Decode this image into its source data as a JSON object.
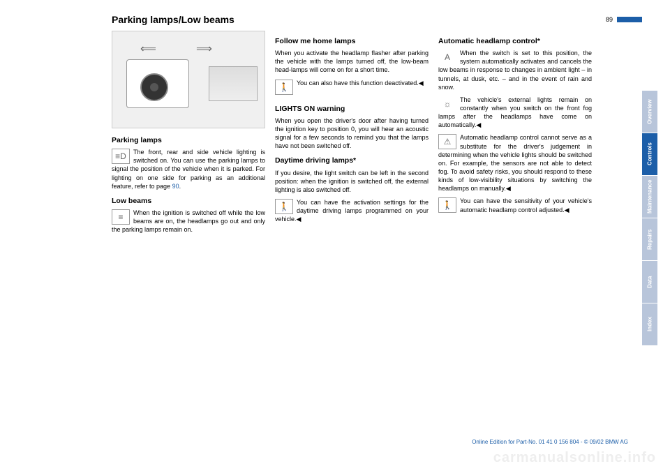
{
  "page_number": "89",
  "title": "Parking lamps/Low beams",
  "col1": {
    "h_parking": "Parking lamps",
    "p_parking": "The front, rear and side vehicle lighting is switched on. You can use the parking lamps to signal the position of the vehicle when it is parked. For lighting on one side for parking as an additional feature, refer to page ",
    "p_parking_link": "90",
    "p_parking_end": ".",
    "h_low": "Low beams",
    "p_low": "When the ignition is switched off while the low beams are on, the headlamps go out and only the parking lamps remain on."
  },
  "col2": {
    "h_follow": "Follow me home lamps",
    "p_follow": "When you activate the headlamp flasher after parking the vehicle with the lamps turned off, the low-beam head-lamps will come on for a short time.",
    "p_follow2": "You can also have this function deactivated.",
    "h_lights": "LIGHTS ON warning",
    "p_lights": "When you open the driver's door after having turned the ignition key to position 0, you will hear an acoustic signal for a few seconds to remind you that the lamps have not been switched off.",
    "h_daytime": "Daytime driving lamps*",
    "p_daytime": "If you desire, the light switch can be left in the second position: when the ignition is switched off, the external lighting is also switched off.",
    "p_daytime2": "You can have the activation settings for the daytime driving lamps programmed on your vehicle."
  },
  "col3": {
    "h_auto": "Automatic headlamp control*",
    "p_auto": "When the switch is set to this position, the system automatically activates and cancels the low beams in response to changes in ambient light – in tunnels, at dusk, etc. – and in the event of rain and snow.",
    "p_auto2": "The vehicle's external lights remain on constantly when you switch on the front fog lamps after the headlamps have come on automatically.",
    "p_auto3": "Automatic headlamp control cannot serve as a substitute for the driver's judgement in determining when the vehicle lights should be switched on. For example, the sensors are not able to detect fog. To avoid safety risks, you should respond to these kinds of low-visibility situations by switching the headlamps on manually.",
    "p_auto4": "You can have the sensitivity of your vehicle's automatic headlamp control adjusted."
  },
  "tabs": [
    "Overview",
    "Controls",
    "Maintenance",
    "Repairs",
    "Data",
    "Index"
  ],
  "active_tab": 1,
  "footer": "Online Edition for Part-No. 01 41 0 156 804 - © 09/02 BMW AG",
  "watermark": "carmanualsonline.info",
  "icons": {
    "parking": "≡D",
    "lowbeam": "≡",
    "person": "🚶",
    "auto": "A",
    "light": "☼",
    "warn": "⚠"
  }
}
